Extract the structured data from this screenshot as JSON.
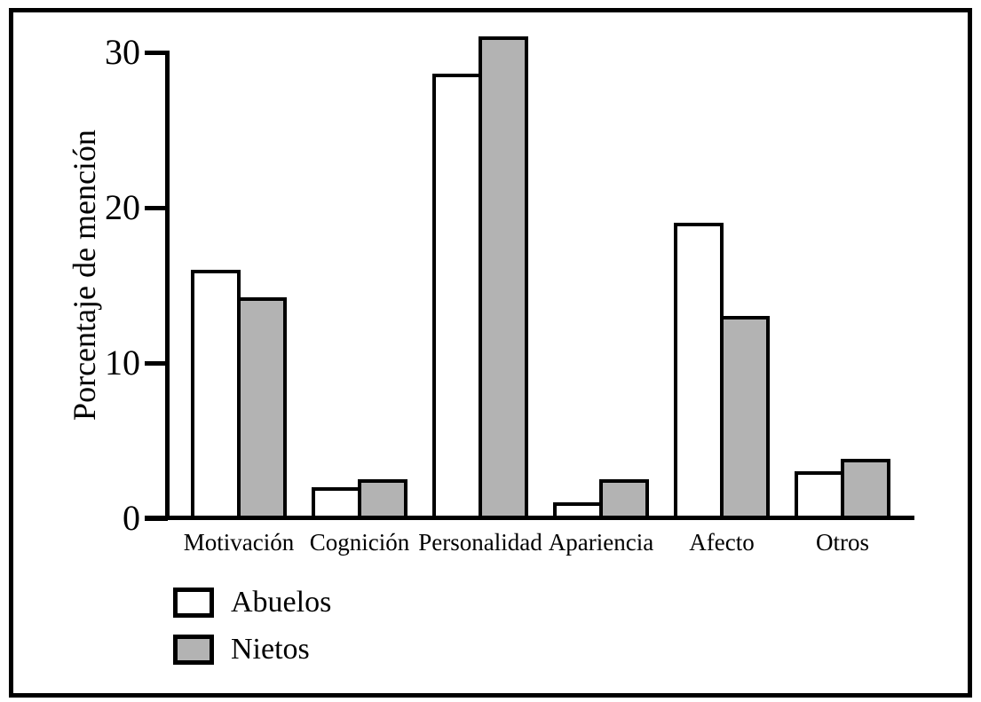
{
  "chart_data": {
    "type": "bar",
    "title": "",
    "categories": [
      "Motivación",
      "Cognición",
      "Personalidad",
      "Apariencia",
      "Afecto",
      "Otros"
    ],
    "series": [
      {
        "name": "Abuelos",
        "color": "#ffffff",
        "values": [
          16,
          2,
          28.6,
          1,
          19,
          3
        ]
      },
      {
        "name": "Nietos",
        "color": "#b3b3b3",
        "values": [
          14.2,
          2.5,
          31,
          2.5,
          13,
          3.8
        ]
      }
    ],
    "xlabel": "",
    "ylabel": "Porcentaje de mención",
    "yticks": [
      0,
      10,
      20,
      30
    ],
    "ylim": [
      0,
      31.5
    ],
    "grid": false,
    "legend_position": "bottom-left",
    "bar_outline_color": "#000000",
    "axis_color": "#000000",
    "background_color": "#ffffff"
  }
}
